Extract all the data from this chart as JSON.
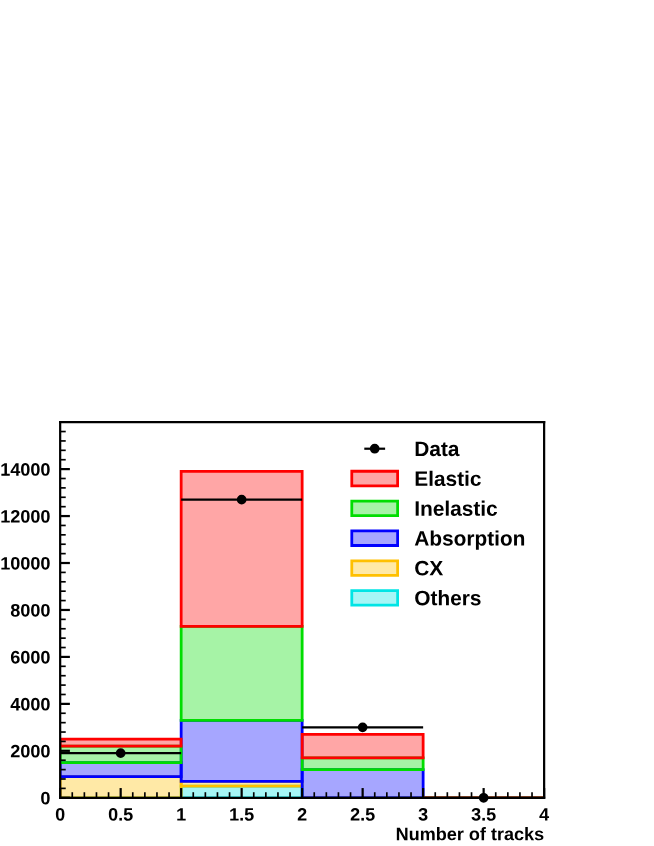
{
  "chart_data": {
    "type": "bar",
    "xlabel": "Number of tracks",
    "x": [
      0.5,
      1.5,
      2.5,
      3.5
    ],
    "stacked": true,
    "series": [
      {
        "name": "Others",
        "color": "#00e5e5",
        "values": [
          0,
          500,
          0,
          0
        ]
      },
      {
        "name": "CX",
        "color": "#ffc000",
        "values": [
          900,
          200,
          0,
          0
        ]
      },
      {
        "name": "Absorption",
        "color": "#0000ff",
        "values": [
          600,
          2600,
          1200,
          0
        ]
      },
      {
        "name": "Inelastic",
        "color": "#00dd00",
        "values": [
          700,
          4000,
          500,
          0
        ]
      },
      {
        "name": "Elastic",
        "color": "#ff0000",
        "values": [
          300,
          6600,
          1000,
          0
        ]
      },
      {
        "name": "Data",
        "type": "scatter",
        "color": "#000000",
        "x": [
          0.5,
          1.5,
          2.5,
          3.5
        ],
        "values": [
          1900,
          12700,
          3000,
          0
        ],
        "xerrors": [
          0.5,
          0.5,
          0.5,
          null
        ],
        "marker": "circle"
      }
    ],
    "xlim": [
      0,
      4
    ],
    "ylim": [
      0,
      16000
    ],
    "xticks": [
      0,
      0.5,
      1,
      1.5,
      2,
      2.5,
      3,
      3.5,
      4
    ],
    "yticks": [
      0,
      2000,
      4000,
      6000,
      8000,
      10000,
      12000,
      14000
    ],
    "legend": "top right"
  }
}
